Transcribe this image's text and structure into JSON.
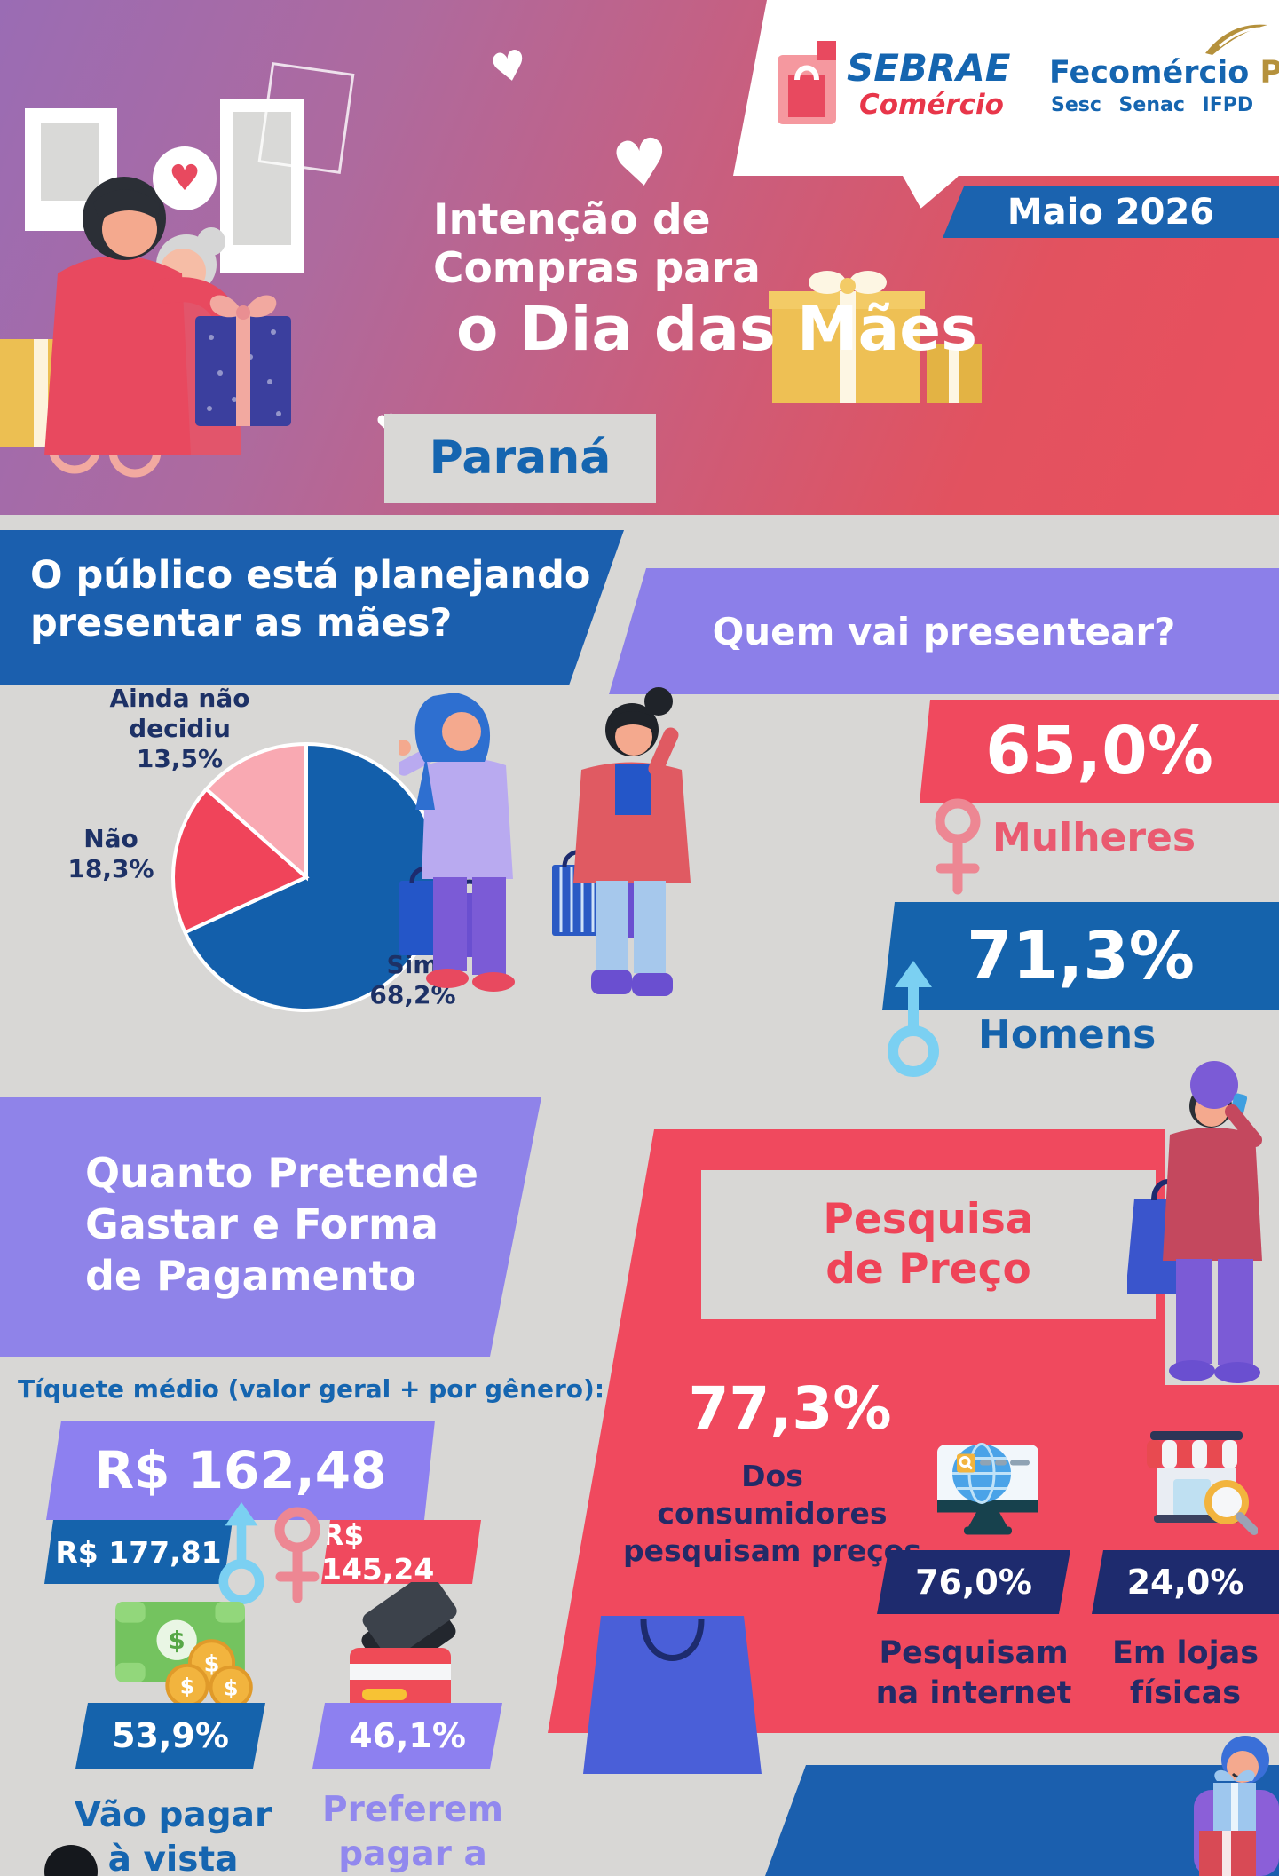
{
  "header": {
    "sebrae": {
      "name": "SEBRAE",
      "division": "Comércio"
    },
    "fecomercio": {
      "name": "Fecomércio",
      "state": "PR",
      "entities": "Sesc Senac IFPD"
    },
    "date_badge": "Maio 2026",
    "title": [
      "Intenção de",
      "Compras para",
      "o Dia das Mães"
    ],
    "region": "Paraná"
  },
  "planning": {
    "heading": [
      "O público está planejando",
      "presentar as mães?"
    ]
  },
  "who": {
    "heading": "Quem vai presentear?",
    "women_pct": "65,0%",
    "women_label": "Mulheres",
    "men_pct": "71,3%",
    "men_label": "Homens"
  },
  "spending": {
    "heading": [
      "Quanto Pretende",
      "Gastar e Forma",
      "de Pagamento"
    ],
    "ticket_caption": "Tíquete médio (valor geral + por gênero):",
    "ticket_avg": "R$ 162,48",
    "ticket_men": "R$ 177,81",
    "ticket_women": "R$ 145,24",
    "cash_pct": "53,9%",
    "cash_label": [
      "Vão pagar",
      "à vista"
    ],
    "installment_pct": "46,1%",
    "installment_label": [
      "Preferem",
      "pagar a prazo"
    ]
  },
  "research": {
    "heading": [
      "Pesquisa",
      "de Preço"
    ],
    "main_pct": "77,3%",
    "main_caption": [
      "Dos consumidores",
      "pesquisam preços"
    ],
    "internet_pct": "76,0%",
    "internet_label": [
      "Pesquisam",
      "na internet"
    ],
    "stores_pct": "24,0%",
    "stores_label": [
      "Em lojas",
      "físicas"
    ]
  },
  "chart_data": {
    "type": "pie",
    "title": "O público está planejando presentar as mães?",
    "labels": [
      "Sim",
      "Não",
      "Ainda não decidiu"
    ],
    "values": [
      68.2,
      18.3,
      13.5
    ],
    "display": [
      "68,2%",
      "18,3%",
      "13,5%"
    ],
    "colors": [
      "#135fab",
      "#f0445a",
      "#f9a9b2"
    ],
    "start_angle_deg": -90,
    "direction": "clockwise",
    "legend_position": "around-slices"
  },
  "colors": {
    "background": "#d8d7d5",
    "primary_blue": "#1563ac",
    "navy_badge": "#1e2b6e",
    "red": "#f0495e",
    "purple_banner": "#8c7fe9",
    "light_purple_badge": "#8d80f0",
    "pink_slice": "#f9a9b2",
    "female_icon": "#ed8793",
    "male_icon": "#7bd0f2",
    "gold_gift": "#eec054",
    "text_navy": "#232a67",
    "mulheres_text": "#ea5a70",
    "fecomercio_gold": "#b5913c",
    "sebrae_blue": "#1565b0",
    "sebrae_red": "#e8364a"
  }
}
